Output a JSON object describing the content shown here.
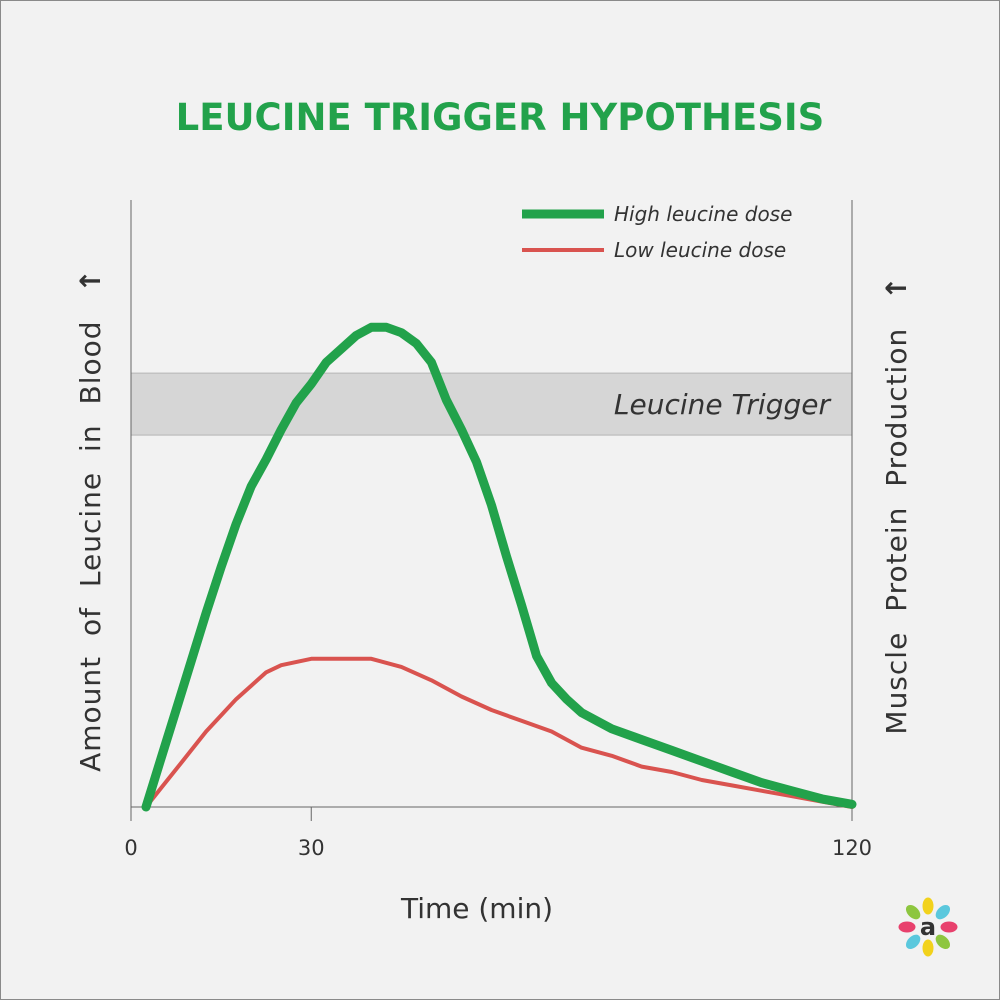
{
  "chart_data": {
    "type": "line",
    "title": "LEUCINE TRIGGER HYPOTHESIS",
    "xlabel": "Time (min)",
    "ylabel_left": "Amount of Leucine in Blood",
    "ylabel_right": "Muscle Protein Production",
    "arrow_glyph": "↑",
    "xlim": [
      0,
      120
    ],
    "ylim": [
      0,
      100
    ],
    "x_ticks": [
      {
        "value": 0,
        "label": "0"
      },
      {
        "value": 30,
        "label": "30"
      },
      {
        "value": 120,
        "label": "120"
      }
    ],
    "band": {
      "label": "Leucine Trigger",
      "y_min": 69,
      "y_max": 80.5
    },
    "legend_position": "top-right",
    "series": [
      {
        "name": "High leucine dose",
        "color": "#22a24b",
        "points": [
          [
            2.5,
            0
          ],
          [
            5,
            9
          ],
          [
            7.5,
            18
          ],
          [
            10,
            27
          ],
          [
            12.5,
            36
          ],
          [
            15,
            44.5
          ],
          [
            17.5,
            52.5
          ],
          [
            20,
            59.5
          ],
          [
            22.5,
            64.5
          ],
          [
            25,
            70
          ],
          [
            27.5,
            75
          ],
          [
            30,
            78.5
          ],
          [
            32.5,
            82.5
          ],
          [
            35,
            85
          ],
          [
            37.5,
            87.5
          ],
          [
            40,
            89
          ],
          [
            42.5,
            89
          ],
          [
            45,
            88
          ],
          [
            47.5,
            86
          ],
          [
            50,
            82.5
          ],
          [
            52.5,
            75.5
          ],
          [
            55,
            70
          ],
          [
            57.5,
            64
          ],
          [
            60,
            56
          ],
          [
            62.5,
            46.5
          ],
          [
            65,
            37.5
          ],
          [
            67.5,
            28
          ],
          [
            70,
            23
          ],
          [
            72.5,
            20
          ],
          [
            75,
            17.5
          ],
          [
            80,
            14.5
          ],
          [
            85,
            12.5
          ],
          [
            90,
            10.5
          ],
          [
            95,
            8.5
          ],
          [
            100,
            6.5
          ],
          [
            105,
            4.5
          ],
          [
            110,
            3
          ],
          [
            115,
            1.5
          ],
          [
            120,
            0.5
          ]
        ]
      },
      {
        "name": "Low leucine dose",
        "color": "#d9534f",
        "points": [
          [
            2.5,
            0
          ],
          [
            5,
            3.5
          ],
          [
            7.5,
            7
          ],
          [
            10,
            10.5
          ],
          [
            12.5,
            14
          ],
          [
            15,
            17
          ],
          [
            17.5,
            20
          ],
          [
            20,
            22.5
          ],
          [
            22.5,
            25
          ],
          [
            25,
            26.3
          ],
          [
            30,
            27.5
          ],
          [
            35,
            27.5
          ],
          [
            40,
            27.5
          ],
          [
            45,
            26
          ],
          [
            50,
            23.5
          ],
          [
            55,
            20.5
          ],
          [
            60,
            18
          ],
          [
            65,
            16
          ],
          [
            70,
            14
          ],
          [
            75,
            11
          ],
          [
            80,
            9.5
          ],
          [
            85,
            7.5
          ],
          [
            90,
            6.5
          ],
          [
            95,
            5
          ],
          [
            100,
            4
          ],
          [
            105,
            3
          ],
          [
            110,
            2
          ],
          [
            115,
            1
          ],
          [
            120,
            0
          ]
        ]
      }
    ]
  },
  "brand": {
    "logo_letter": "a",
    "logo_petal_colors": [
      "#f2d21c",
      "#5bc8dd",
      "#e8416d",
      "#8dc63f",
      "#f2d21c",
      "#5bc8dd",
      "#e8416d",
      "#8dc63f"
    ]
  }
}
